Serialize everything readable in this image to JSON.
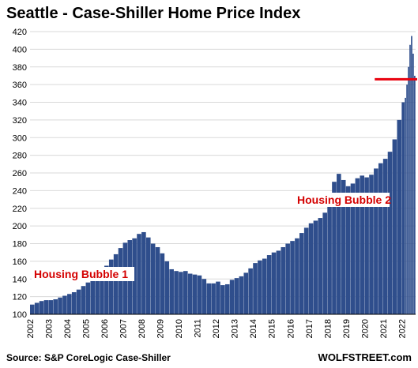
{
  "chart_data": {
    "type": "bar",
    "title": "Seattle - Case-Shiller Home Price Index",
    "ylim": [
      100,
      420
    ],
    "y_ticks": [
      100,
      120,
      140,
      160,
      180,
      200,
      220,
      240,
      260,
      280,
      300,
      320,
      340,
      360,
      380,
      400,
      420
    ],
    "x_ticks": [
      "2002",
      "2003",
      "2004",
      "2005",
      "2006",
      "2007",
      "2008",
      "2009",
      "2010",
      "2011",
      "2012",
      "2013",
      "2014",
      "2015",
      "2016",
      "2017",
      "2018",
      "2019",
      "2020",
      "2021",
      "2022"
    ],
    "x": [
      "2002-01",
      "2002-04",
      "2002-07",
      "2002-10",
      "2003-01",
      "2003-04",
      "2003-07",
      "2003-10",
      "2004-01",
      "2004-04",
      "2004-07",
      "2004-10",
      "2005-01",
      "2005-04",
      "2005-07",
      "2005-10",
      "2006-01",
      "2006-04",
      "2006-07",
      "2006-10",
      "2007-01",
      "2007-04",
      "2007-07",
      "2007-10",
      "2008-01",
      "2008-04",
      "2008-07",
      "2008-10",
      "2009-01",
      "2009-04",
      "2009-07",
      "2009-10",
      "2010-01",
      "2010-04",
      "2010-07",
      "2010-10",
      "2011-01",
      "2011-04",
      "2011-07",
      "2011-10",
      "2012-01",
      "2012-04",
      "2012-07",
      "2012-10",
      "2013-01",
      "2013-04",
      "2013-07",
      "2013-10",
      "2014-01",
      "2014-04",
      "2014-07",
      "2014-10",
      "2015-01",
      "2015-04",
      "2015-07",
      "2015-10",
      "2016-01",
      "2016-04",
      "2016-07",
      "2016-10",
      "2017-01",
      "2017-04",
      "2017-07",
      "2017-10",
      "2018-01",
      "2018-04",
      "2018-07",
      "2018-10",
      "2019-01",
      "2019-04",
      "2019-07",
      "2019-10",
      "2020-01",
      "2020-04",
      "2020-07",
      "2020-10",
      "2021-01",
      "2021-04",
      "2021-07",
      "2021-10",
      "2022-01",
      "2022-03",
      "2022-04",
      "2022-05",
      "2022-06",
      "2022-07",
      "2022-08",
      "2022-09"
    ],
    "values": [
      111,
      113,
      115,
      116,
      116,
      117,
      119,
      121,
      123,
      125,
      128,
      132,
      136,
      140,
      144,
      149,
      155,
      162,
      168,
      175,
      181,
      184,
      186,
      191,
      193,
      187,
      180,
      176,
      169,
      160,
      151,
      149,
      148,
      149,
      146,
      145,
      144,
      140,
      135,
      135,
      137,
      133,
      134,
      139,
      141,
      143,
      147,
      152,
      158,
      161,
      163,
      167,
      170,
      172,
      176,
      180,
      183,
      186,
      192,
      198,
      203,
      206,
      209,
      215,
      224,
      250,
      259,
      252,
      245,
      248,
      254,
      257,
      255,
      258,
      265,
      271,
      276,
      284,
      298,
      320,
      340,
      345,
      360,
      380,
      405,
      415,
      395,
      370
    ],
    "reference_line": {
      "value": 366,
      "color": "#e8000d"
    },
    "annotations": [
      "Housing Bubble 1",
      "Housing Bubble 2"
    ],
    "grid": true,
    "bar_color": "#2f4e8c"
  },
  "footer": {
    "source": "Source: S&P CoreLogic Case-Shiller",
    "brand": "WOLFSTREET.com"
  }
}
